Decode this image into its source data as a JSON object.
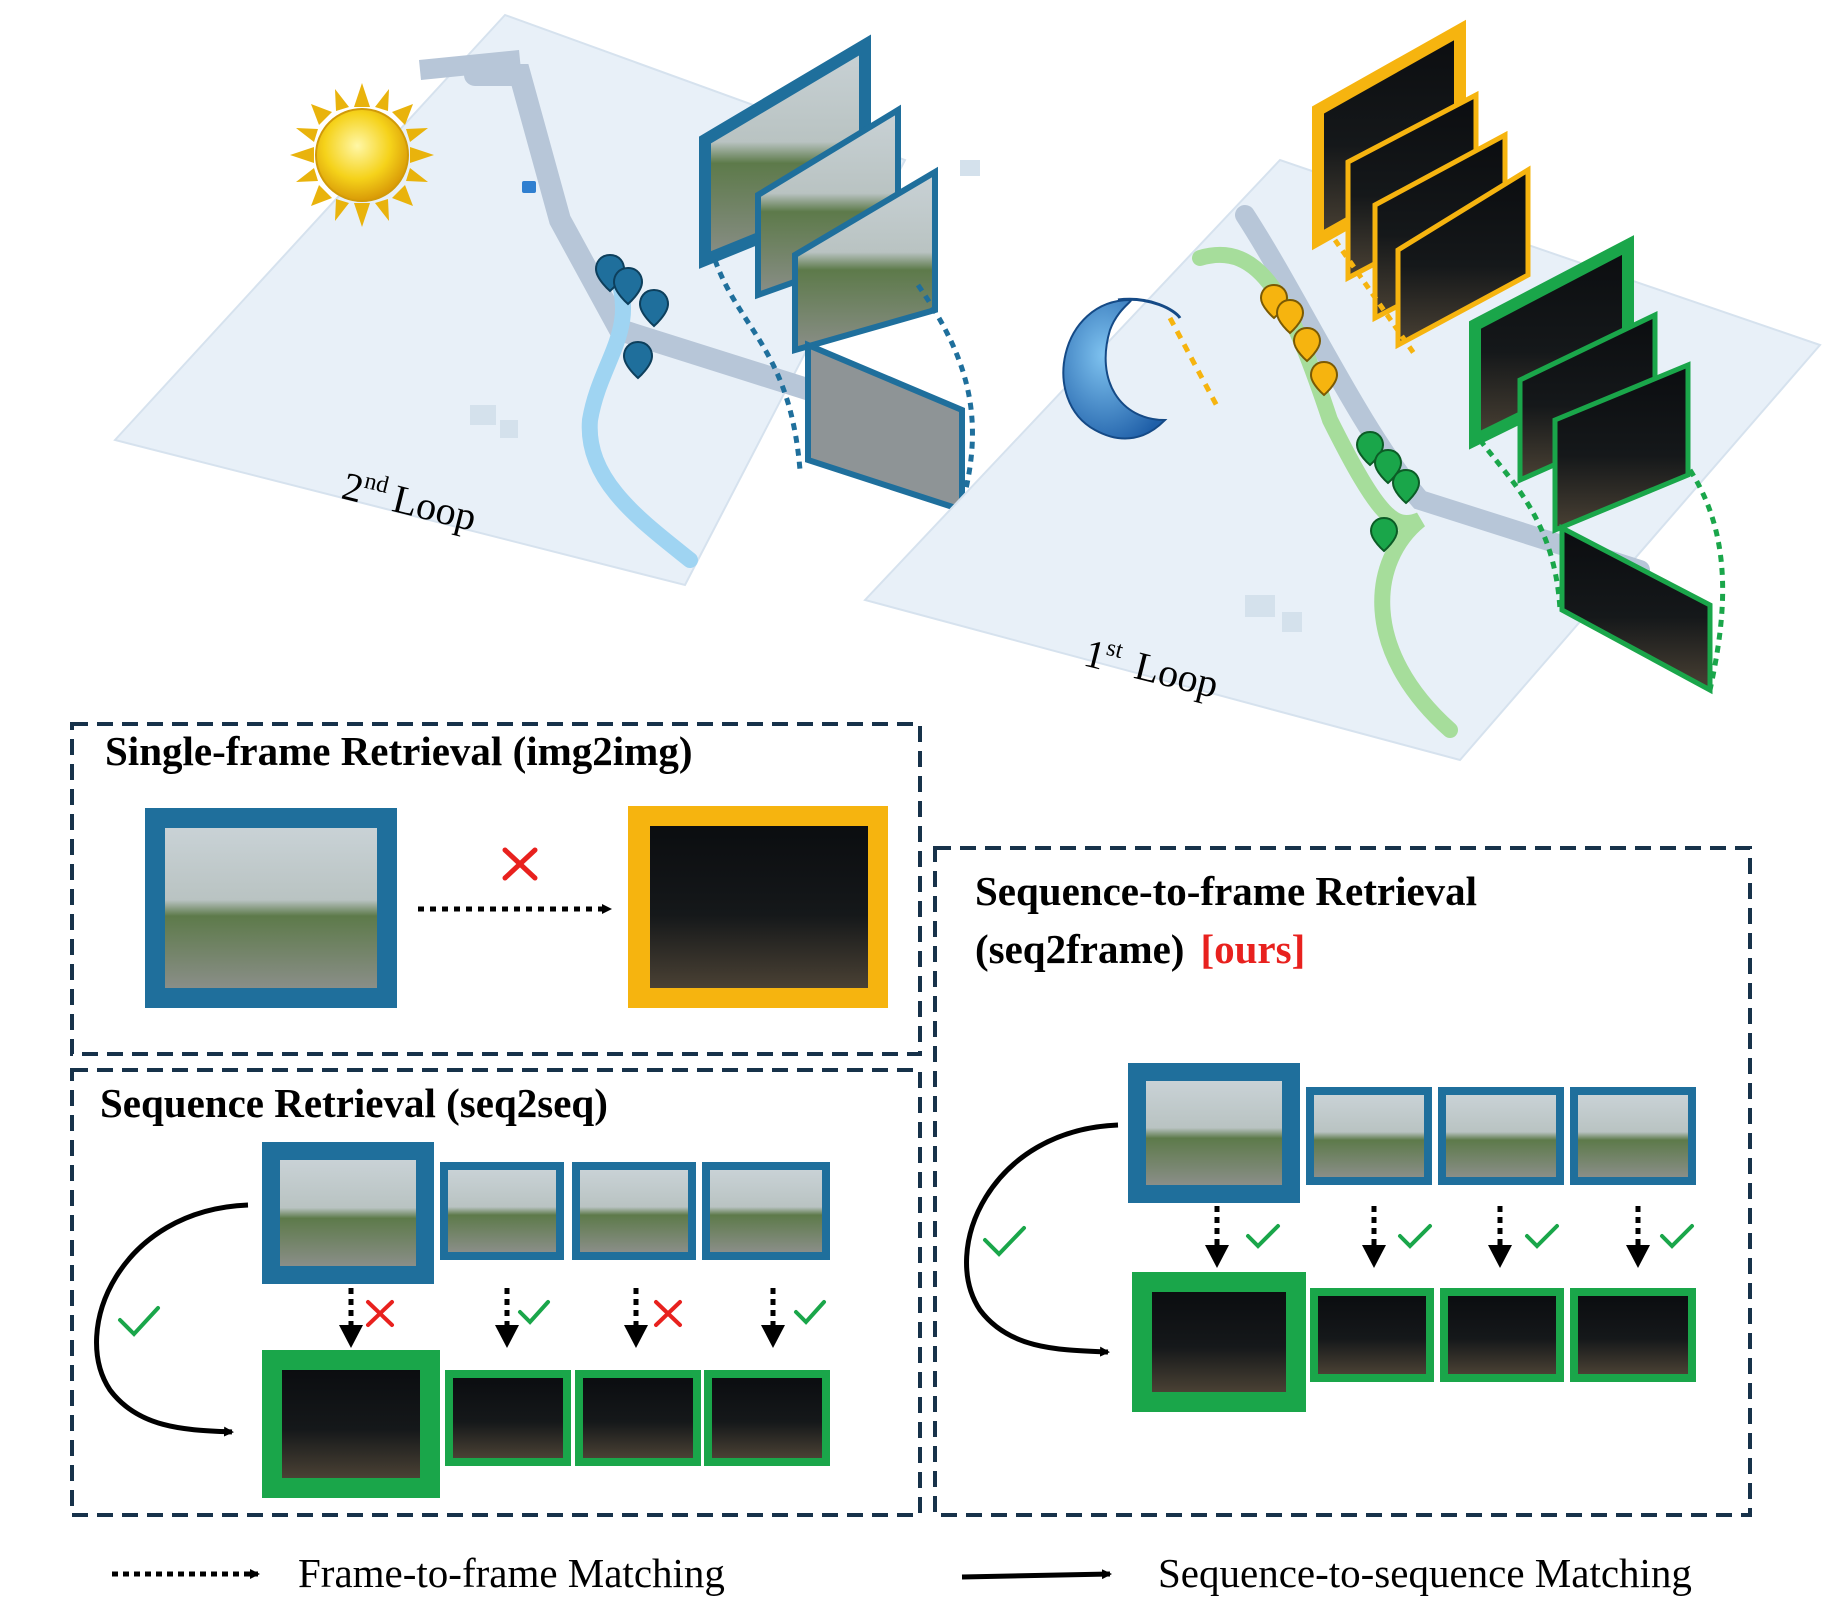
{
  "colors": {
    "query_blue": "#1f6f9c",
    "night_yellow": "#f6b40f",
    "match_green": "#1aa64a",
    "box_dash": "#17324a",
    "cross_red": "#e8211e",
    "check_green": "#1aa64a",
    "map_bg": "#e8f0f8",
    "road": "#b7c6d8",
    "route_blue": "#9fd4f2",
    "route_green": "#a6dd9b"
  },
  "icons": {
    "sun": "sun-icon",
    "moon": "crescent-moon-face-icon",
    "pin": "map-pin-icon",
    "check": "check-icon",
    "cross": "cross-icon"
  },
  "map": {
    "loop2_label": "Loop",
    "loop2_sup": "nd",
    "loop2_num": "2",
    "loop1_label": "Loop",
    "loop1_sup": "st",
    "loop1_num": "1"
  },
  "panels": {
    "single": {
      "title": "Single-frame Retrieval (img2img)"
    },
    "seq2seq": {
      "title": "Sequence Retrieval (seq2seq)"
    },
    "seq2frame": {
      "title_line1": "Sequence-to-frame Retrieval",
      "title_line2": "(seq2frame)",
      "ours": "[ours]"
    }
  },
  "legend": {
    "frame_matching": "Frame-to-frame Matching",
    "sequence_matching": "Sequence-to-sequence Matching"
  }
}
